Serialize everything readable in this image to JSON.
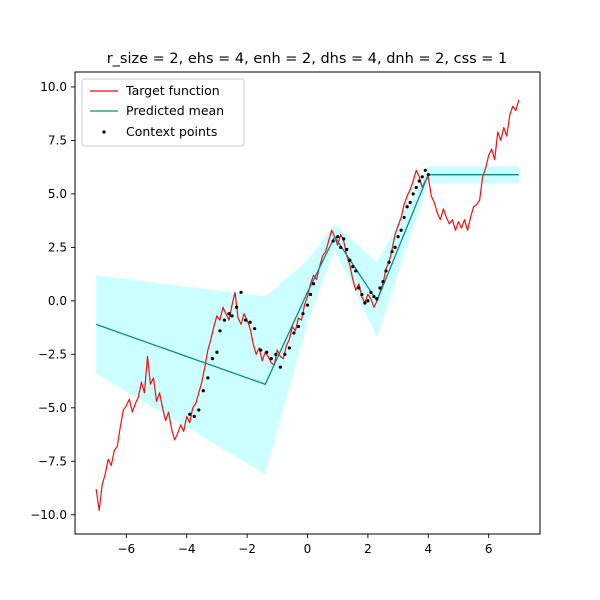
{
  "chart_data": {
    "type": "line",
    "title": "r_size = 2, ehs = 4, enh = 2, dhs = 4, dnh = 2, css = 1",
    "xlabel": "",
    "ylabel": "",
    "xlim": [
      -7.7,
      7.7
    ],
    "ylim": [
      -10.9,
      10.7
    ],
    "xticks": [
      -6,
      -4,
      -2,
      0,
      2,
      4,
      6
    ],
    "xtick_labels": [
      "−6",
      "−4",
      "−2",
      "0",
      "2",
      "4",
      "6"
    ],
    "yticks": [
      -10,
      -7.5,
      -5,
      -2.5,
      0,
      2.5,
      5,
      7.5,
      10
    ],
    "ytick_labels": [
      "−10.0",
      "−7.5",
      "−5.0",
      "−2.5",
      "0.0",
      "2.5",
      "5.0",
      "7.5",
      "10.0"
    ],
    "grid": false,
    "legend_position": "top-left",
    "colors": {
      "target": "#ee1111",
      "mean": "#118888",
      "band": "#ccffff",
      "context": "#000000"
    },
    "legend": {
      "target": "Target function",
      "mean": "Predicted mean",
      "context": "Context points"
    },
    "target_function": {
      "x": [
        -7,
        -6.9,
        -6.8,
        -6.7,
        -6.6,
        -6.5,
        -6.4,
        -6.3,
        -6.2,
        -6.1,
        -6,
        -5.9,
        -5.8,
        -5.7,
        -5.6,
        -5.5,
        -5.4,
        -5.3,
        -5.2,
        -5.1,
        -5,
        -4.9,
        -4.8,
        -4.7,
        -4.6,
        -4.5,
        -4.4,
        -4.3,
        -4.2,
        -4.1,
        -4,
        -3.9,
        -3.8,
        -3.7,
        -3.6,
        -3.5,
        -3.4,
        -3.3,
        -3.2,
        -3.1,
        -3,
        -2.9,
        -2.8,
        -2.7,
        -2.6,
        -2.5,
        -2.4,
        -2.3,
        -2.2,
        -2.1,
        -2,
        -1.9,
        -1.8,
        -1.7,
        -1.6,
        -1.5,
        -1.4,
        -1.3,
        -1.2,
        -1.1,
        -1,
        -0.9,
        -0.8,
        -0.7,
        -0.6,
        -0.5,
        -0.4,
        -0.3,
        -0.2,
        -0.1,
        0,
        0.1,
        0.2,
        0.3,
        0.4,
        0.5,
        0.6,
        0.7,
        0.8,
        0.9,
        1,
        1.1,
        1.2,
        1.3,
        1.4,
        1.5,
        1.6,
        1.7,
        1.8,
        1.9,
        2,
        2.1,
        2.2,
        2.3,
        2.4,
        2.5,
        2.6,
        2.7,
        2.8,
        2.9,
        3,
        3.1,
        3.2,
        3.3,
        3.4,
        3.5,
        3.6,
        3.7,
        3.8,
        3.9,
        4,
        4.1,
        4.2,
        4.3,
        4.4,
        4.5,
        4.6,
        4.7,
        4.8,
        4.9,
        5,
        5.1,
        5.2,
        5.3,
        5.4,
        5.5,
        5.6,
        5.7,
        5.8,
        5.9,
        6,
        6.1,
        6.2,
        6.3,
        6.4,
        6.5,
        6.6,
        6.7,
        6.8,
        6.9,
        7
      ],
      "y": [
        -8.8,
        -9.8,
        -8.6,
        -8.1,
        -7.4,
        -7.7,
        -7.0,
        -6.8,
        -5.9,
        -5.1,
        -4.9,
        -4.6,
        -5.2,
        -4.8,
        -4.5,
        -3.8,
        -4.3,
        -2.6,
        -3.9,
        -3.6,
        -4.7,
        -4.3,
        -5.0,
        -5.6,
        -5.2,
        -6.0,
        -6.5,
        -6.2,
        -5.8,
        -6.1,
        -5.4,
        -5.7,
        -5.0,
        -4.8,
        -4.3,
        -3.8,
        -3.1,
        -2.3,
        -1.8,
        -1.2,
        -0.7,
        -0.9,
        -0.3,
        -0.6,
        -0.9,
        -0.2,
        0.4,
        -0.8,
        -1.1,
        -0.6,
        -0.9,
        -1.3,
        -2.0,
        -2.5,
        -2.2,
        -2.8,
        -2.4,
        -2.6,
        -2.9,
        -3.0,
        -2.3,
        -2.6,
        -2.7,
        -2.1,
        -1.8,
        -1.2,
        -1.4,
        -0.8,
        -0.9,
        -0.2,
        0.2,
        0.8,
        1.2,
        1.0,
        1.6,
        2.1,
        2.3,
        2.8,
        3.3,
        3.0,
        2.6,
        3.1,
        2.8,
        2.1,
        1.7,
        1.0,
        0.5,
        0.8,
        0.2,
        -0.1,
        0.3,
        0.1,
        -0.3,
        0.0,
        0.4,
        0.8,
        1.5,
        1.8,
        2.4,
        3.1,
        3.5,
        3.9,
        4.5,
        4.9,
        5.2,
        5.6,
        6.1,
        5.8,
        5.3,
        5.6,
        5.8,
        4.9,
        4.6,
        4.1,
        3.8,
        4.3,
        3.9,
        3.6,
        3.8,
        3.3,
        3.7,
        3.4,
        3.8,
        3.3,
        3.9,
        4.4,
        4.5,
        4.7,
        5.8,
        6.2,
        6.8,
        7.1,
        6.6,
        7.9,
        7.5,
        8.1,
        7.7,
        8.7,
        9.1,
        8.9,
        9.4
      ]
    },
    "predicted_mean": {
      "x": [
        -7,
        -1.4,
        0,
        0.9,
        2.3,
        4.0,
        7
      ],
      "y": [
        -1.1,
        -3.9,
        0.4,
        3.0,
        0.0,
        5.9,
        5.9
      ]
    },
    "uncertainty_band": {
      "x": [
        -7,
        -1.4,
        0,
        0.9,
        2.3,
        4.0,
        7
      ],
      "upper": [
        1.2,
        0.2,
        1.9,
        3.6,
        1.8,
        6.3,
        6.3
      ],
      "lower": [
        -3.4,
        -8.1,
        -1.0,
        2.4,
        -1.7,
        5.5,
        5.5
      ]
    },
    "context_points": {
      "x": [
        -3.9,
        -3.75,
        -3.6,
        -3.45,
        -3.3,
        -3.15,
        -3.0,
        -2.9,
        -2.75,
        -2.6,
        -2.5,
        -2.35,
        -2.2,
        -2.05,
        -1.9,
        -1.75,
        -1.55,
        -1.35,
        -1.2,
        -1.05,
        -0.9,
        -0.75,
        -0.6,
        -0.45,
        -0.3,
        -0.15,
        0.0,
        0.1,
        0.2,
        0.85,
        1.0,
        1.1,
        1.2,
        1.3,
        1.4,
        1.5,
        1.6,
        1.7,
        1.8,
        1.9,
        2.0,
        2.1,
        2.2,
        2.3,
        2.4,
        2.5,
        2.6,
        2.7,
        2.8,
        2.9,
        3.0,
        3.1,
        3.2,
        3.3,
        3.4,
        3.5,
        3.6,
        3.7,
        3.8,
        3.9,
        4.0
      ],
      "y": [
        -5.3,
        -5.4,
        -5.1,
        -4.2,
        -3.6,
        -2.7,
        -2.4,
        -1.4,
        -0.9,
        -0.6,
        -0.7,
        -0.3,
        0.4,
        -0.9,
        -1.0,
        -1.3,
        -2.3,
        -2.4,
        -2.7,
        -2.5,
        -3.1,
        -2.5,
        -2.2,
        -1.5,
        -1.2,
        -0.6,
        -0.2,
        0.3,
        0.8,
        2.8,
        3.0,
        2.5,
        2.9,
        2.4,
        1.9,
        1.6,
        1.4,
        0.6,
        0.3,
        -0.1,
        0.0,
        0.4,
        0.2,
        0.1,
        0.6,
        0.9,
        1.4,
        1.8,
        2.3,
        2.5,
        3.0,
        3.3,
        3.9,
        4.4,
        4.6,
        5.0,
        5.3,
        5.6,
        5.8,
        6.1,
        5.9
      ]
    }
  }
}
